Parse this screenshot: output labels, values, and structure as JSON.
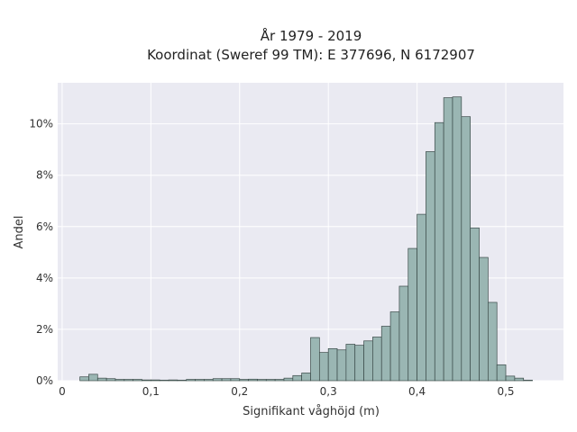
{
  "chart_data": {
    "type": "bar",
    "title": "År 1979 - 2019",
    "subtitle": "Koordinat (Sweref 99 TM): E 377696, N 6172907",
    "xlabel": "Signifikant våghöjd (m)",
    "ylabel": "Andel",
    "xlim": [
      -0.005,
      0.565
    ],
    "ylim": [
      0,
      11.6
    ],
    "x_ticks": [
      {
        "value": 0.0,
        "label": "0"
      },
      {
        "value": 0.1,
        "label": "0,1"
      },
      {
        "value": 0.2,
        "label": "0,2"
      },
      {
        "value": 0.3,
        "label": "0,3"
      },
      {
        "value": 0.4,
        "label": "0,4"
      },
      {
        "value": 0.5,
        "label": "0,5"
      }
    ],
    "y_ticks": [
      {
        "value": 0,
        "label": "0%"
      },
      {
        "value": 2,
        "label": "2%"
      },
      {
        "value": 4,
        "label": "4%"
      },
      {
        "value": 6,
        "label": "6%"
      },
      {
        "value": 8,
        "label": "8%"
      },
      {
        "value": 10,
        "label": "10%"
      }
    ],
    "bin_width": 0.01,
    "bin_starts": [
      0.02,
      0.03,
      0.04,
      0.05,
      0.06,
      0.07,
      0.08,
      0.09,
      0.1,
      0.11,
      0.12,
      0.13,
      0.14,
      0.15,
      0.16,
      0.17,
      0.18,
      0.19,
      0.2,
      0.21,
      0.22,
      0.23,
      0.24,
      0.25,
      0.26,
      0.27,
      0.28,
      0.29,
      0.3,
      0.31,
      0.32,
      0.33,
      0.34,
      0.35,
      0.36,
      0.37,
      0.38,
      0.39,
      0.4,
      0.41,
      0.42,
      0.43,
      0.44,
      0.45,
      0.46,
      0.47,
      0.48,
      0.49,
      0.5,
      0.51,
      0.52,
      0.53
    ],
    "values": [
      0.15,
      0.25,
      0.1,
      0.08,
      0.05,
      0.05,
      0.05,
      0.03,
      0.03,
      0.02,
      0.03,
      0.02,
      0.05,
      0.05,
      0.05,
      0.08,
      0.08,
      0.08,
      0.05,
      0.06,
      0.05,
      0.05,
      0.05,
      0.1,
      0.2,
      0.3,
      1.68,
      1.1,
      1.25,
      1.2,
      1.42,
      1.38,
      1.55,
      1.7,
      2.12,
      2.68,
      3.68,
      5.15,
      6.48,
      8.92,
      10.05,
      11.02,
      11.05,
      10.28,
      5.95,
      4.8,
      3.05,
      0.62,
      0.18,
      0.1,
      0.02,
      0.0
    ],
    "bar_color": "#9ab6b3",
    "bar_edge_color": "#3a4a48",
    "plot_background": "#eaeaf2",
    "grid": true,
    "grid_color": "#ffffff"
  }
}
